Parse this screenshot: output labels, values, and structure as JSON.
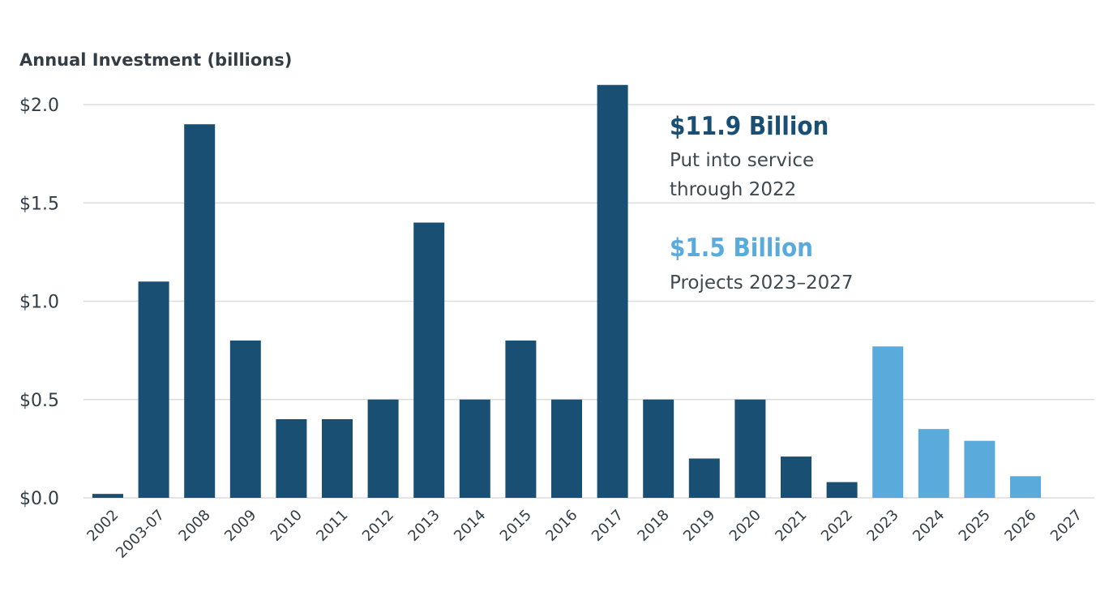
{
  "chart_data": {
    "type": "bar",
    "ylabel": "Annual Investment (billions)",
    "ylim": [
      0,
      2.1
    ],
    "yticks": [
      "$0.0",
      "$0.5",
      "$1.0",
      "$1.5",
      "$2.0"
    ],
    "ytick_values": [
      0,
      0.5,
      1.0,
      1.5,
      2.0
    ],
    "grid": true,
    "categories": [
      "2002",
      "2003-07",
      "2008",
      "2009",
      "2010",
      "2011",
      "2012",
      "2013",
      "2014",
      "2015",
      "2016",
      "2017",
      "2018",
      "2019",
      "2020",
      "2021",
      "2022",
      "2023",
      "2024",
      "2025",
      "2026",
      "2027"
    ],
    "series": [
      {
        "name": "Put into service through 2022",
        "color": "#1a4f74",
        "values": [
          0.02,
          1.1,
          1.9,
          0.8,
          0.4,
          0.4,
          0.5,
          1.4,
          0.5,
          0.8,
          0.5,
          2.1,
          0.5,
          0.2,
          0.5,
          0.21,
          0.08,
          null,
          null,
          null,
          null,
          null
        ]
      },
      {
        "name": "Projects 2023–2027",
        "color": "#5aabdc",
        "values": [
          null,
          null,
          null,
          null,
          null,
          null,
          null,
          null,
          null,
          null,
          null,
          null,
          null,
          null,
          null,
          null,
          null,
          0.77,
          0.35,
          0.29,
          0.11,
          0
        ]
      }
    ],
    "annotations": [
      {
        "headline": "$11.9 Billion",
        "lines": [
          "Put into service",
          "through 2022"
        ],
        "color": "#1a4f74"
      },
      {
        "headline": "$1.5 Billion",
        "lines": [
          "Projects 2023–2027"
        ],
        "color": "#5aabdc"
      }
    ]
  }
}
